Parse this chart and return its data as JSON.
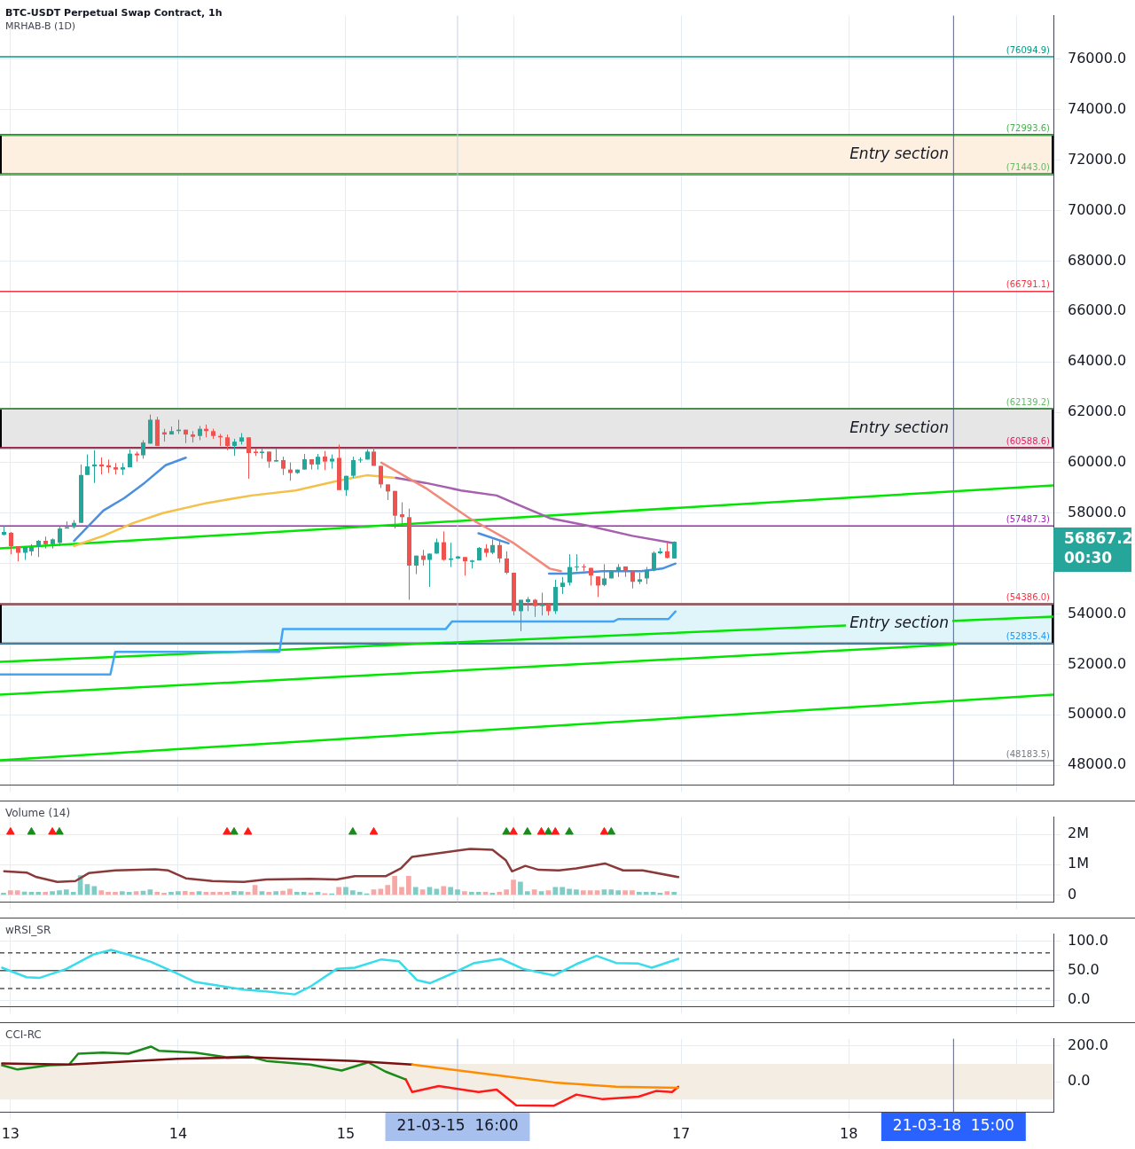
{
  "chart_data": [
    {
      "type": "candlestick",
      "title": "BTC-USDT Perpetual Swap Contract, 1h",
      "subtitle": "MRHAB-B (1D)",
      "x": [
        "--03-12T23:00",
        "--03-13T00:00",
        "--03-13T01:00",
        "--03-13T02:00",
        "--03-13T03:00",
        "--03-13T04:00",
        "--03-13T05:00",
        "--03-13T06:00",
        "--03-13T07:00",
        "--03-13T08:00",
        "--03-13T09:00",
        "--03-13T10:00",
        "--03-13T11:00",
        "--03-13T12:00",
        "--03-13T13:00",
        "--03-13T14:00",
        "--03-13T15:00",
        "--03-13T16:00",
        "--03-13T17:00",
        "--03-13T18:00",
        "--03-13T19:00",
        "--03-13T20:00",
        "--03-13T21:00",
        "--03-13T22:00",
        "--03-13T23:00",
        "--03-14T00:00",
        "--03-14T01:00",
        "--03-14T02:00",
        "--03-14T03:00",
        "--03-14T04:00",
        "--03-14T05:00",
        "--03-14T06:00",
        "--03-14T07:00",
        "--03-14T08:00",
        "--03-14T09:00",
        "--03-14T10:00",
        "--03-14T11:00",
        "--03-14T12:00",
        "--03-14T13:00",
        "--03-14T14:00",
        "--03-14T15:00",
        "--03-14T16:00",
        "--03-14T17:00",
        "--03-14T18:00",
        "--03-14T19:00",
        "--03-14T20:00",
        "--03-14T21:00",
        "--03-14T22:00",
        "--03-14T23:00",
        "--03-15T00:00",
        "--03-15T01:00",
        "--03-15T02:00",
        "--03-15T03:00",
        "--03-15T04:00",
        "--03-15T05:00",
        "--03-15T06:00",
        "--03-15T07:00",
        "--03-15T08:00",
        "--03-15T09:00",
        "--03-15T10:00",
        "--03-15T11:00",
        "--03-15T12:00",
        "--03-15T13:00",
        "--03-15T14:00",
        "--03-15T15:00",
        "--03-15T16:00",
        "--03-15T17:00",
        "--03-15T18:00",
        "--03-15T19:00",
        "--03-15T20:00",
        "--03-15T21:00",
        "--03-15T22:00",
        "--03-15T23:00",
        "--03-16T00:00",
        "--03-16T01:00",
        "--03-16T02:00",
        "--03-16T03:00",
        "--03-16T04:00",
        "--03-16T05:00",
        "--03-16T06:00",
        "--03-16T07:00",
        "--03-16T08:00",
        "--03-16T09:00",
        "--03-16T10:00",
        "--03-16T11:00",
        "--03-16T12:00",
        "--03-16T13:00",
        "--03-16T14:00",
        "--03-16T15:00",
        "--03-16T16:00",
        "--03-16T17:00",
        "--03-16T18:00",
        "--03-16T19:00",
        "--03-16T20:00",
        "--03-16T21:00",
        "--03-16T22:00",
        "--03-16T23:00"
      ],
      "ohlc": [
        [
          57140,
          57502,
          57107,
          57253
        ],
        [
          57220,
          57253,
          56372,
          56688
        ],
        [
          56688,
          56688,
          56090,
          56428
        ],
        [
          56428,
          56655,
          56146,
          56655
        ],
        [
          56485,
          56767,
          56310,
          56655
        ],
        [
          56655,
          56937,
          56259,
          56903
        ],
        [
          56903,
          57073,
          56598,
          56767
        ],
        [
          56767,
          57000,
          56598,
          56960
        ],
        [
          56824,
          57502,
          56700,
          57389
        ],
        [
          57389,
          57672,
          57389,
          57445
        ],
        [
          57445,
          57728,
          57389,
          57615
        ],
        [
          57615,
          59931,
          57615,
          59513
        ],
        [
          59513,
          60327,
          59513,
          59852
        ],
        [
          59852,
          60496,
          59197,
          59931
        ],
        [
          59931,
          60214,
          59536,
          59852
        ],
        [
          59898,
          60124,
          59592,
          59818
        ],
        [
          59818,
          59988,
          59536,
          59728
        ],
        [
          59728,
          59988,
          59513,
          59818
        ],
        [
          59818,
          60519,
          59818,
          60361
        ],
        [
          60361,
          60440,
          60045,
          60293
        ],
        [
          60293,
          60892,
          60158,
          60801
        ],
        [
          60756,
          61909,
          60756,
          61706
        ],
        [
          61706,
          61819,
          60666,
          60666
        ],
        [
          61208,
          61344,
          60835,
          61118
        ],
        [
          61118,
          61434,
          61118,
          61253
        ],
        [
          61253,
          61706,
          61140,
          61310
        ],
        [
          61310,
          61310,
          60779,
          61118
        ],
        [
          61118,
          61253,
          60801,
          61028
        ],
        [
          61061,
          61457,
          60892,
          61344
        ],
        [
          61344,
          61513,
          61005,
          61253
        ],
        [
          61253,
          61344,
          60948,
          61061
        ],
        [
          61061,
          61140,
          60666,
          61005
        ],
        [
          61005,
          61118,
          60496,
          60666
        ],
        [
          60666,
          60948,
          60271,
          60835
        ],
        [
          60835,
          61174,
          60722,
          61005
        ],
        [
          61005,
          61005,
          59366,
          60384
        ],
        [
          60440,
          60553,
          60271,
          60384
        ],
        [
          60384,
          60553,
          60158,
          60440
        ],
        [
          60440,
          60440,
          59796,
          60045
        ],
        [
          60045,
          60553,
          60045,
          60101
        ],
        [
          60101,
          60237,
          59513,
          59762
        ],
        [
          59728,
          60011,
          59287,
          59592
        ],
        [
          59592,
          59728,
          59559,
          59728
        ],
        [
          59728,
          60350,
          59728,
          60135
        ],
        [
          60135,
          60135,
          59732,
          59931
        ],
        [
          59931,
          60350,
          59728,
          60237
        ],
        [
          60248,
          60463,
          59705,
          60045
        ],
        [
          60045,
          60327,
          59762,
          60158
        ],
        [
          60191,
          60722,
          58914,
          58914
        ],
        [
          58914,
          59480,
          58688,
          59480
        ],
        [
          59480,
          60237,
          59400,
          60101
        ],
        [
          60101,
          60214,
          60000,
          60124
        ],
        [
          60124,
          60520,
          60124,
          60440
        ],
        [
          60440,
          60600,
          59875,
          59875
        ],
        [
          59875,
          59875,
          59000,
          59140
        ],
        [
          59140,
          59140,
          58519,
          58858
        ],
        [
          58881,
          58881,
          57389,
          57897
        ],
        [
          57954,
          58429,
          57502,
          57841
        ],
        [
          57841,
          58180,
          54564,
          55920
        ],
        [
          55920,
          56316,
          55581,
          56316
        ],
        [
          56316,
          56542,
          55920,
          56146
        ],
        [
          56146,
          56395,
          55073,
          56395
        ],
        [
          56395,
          56994,
          56395,
          56847
        ],
        [
          56847,
          57276,
          56112,
          56146
        ],
        [
          56146,
          56824,
          55864,
          56203
        ],
        [
          56203,
          56300,
          56180,
          56282
        ],
        [
          56259,
          56259,
          55525,
          56090
        ],
        [
          56067,
          56150,
          55807,
          56123
        ],
        [
          56123,
          56655,
          56123,
          56621
        ],
        [
          56598,
          56768,
          56259,
          56428
        ],
        [
          56428,
          56960,
          56372,
          56734
        ],
        [
          56734,
          56937,
          56033,
          56203
        ],
        [
          56203,
          56485,
          55581,
          55637
        ],
        [
          55637,
          55637,
          53943,
          54112
        ],
        [
          54112,
          54564,
          53321,
          54564
        ],
        [
          54474,
          54677,
          54112,
          54587
        ],
        [
          54564,
          54600,
          53886,
          54315
        ],
        [
          54315,
          54844,
          53943,
          54383
        ],
        [
          54383,
          54400,
          53943,
          54112
        ],
        [
          54112,
          55355,
          54000,
          55073
        ],
        [
          55073,
          55468,
          54790,
          55242
        ],
        [
          55242,
          56372,
          55129,
          55864
        ],
        [
          55864,
          56372,
          55694,
          55886
        ],
        [
          55886,
          55977,
          55694,
          55852
        ],
        [
          55830,
          55830,
          55129,
          55525
        ],
        [
          55491,
          55491,
          54677,
          55129
        ],
        [
          55152,
          55977,
          55106,
          55411
        ],
        [
          55411,
          55717,
          55411,
          55717
        ],
        [
          55717,
          55977,
          55468,
          55864
        ],
        [
          55886,
          55886,
          55468,
          55694
        ],
        [
          55694,
          55694,
          55016,
          55276
        ],
        [
          55276,
          55637,
          55186,
          55378
        ],
        [
          55411,
          55864,
          55186,
          55751
        ],
        [
          55728,
          56485,
          55694,
          56428
        ],
        [
          56406,
          56621,
          56372,
          56485
        ],
        [
          56485,
          56824,
          56203,
          56225
        ],
        [
          56203,
          56880,
          56203,
          56867.2
        ]
      ],
      "colors": [
        "#26a69a",
        "#ef5350",
        "#ef5350",
        "#26a69a",
        "#26a69a",
        "#26a69a",
        "#ef5350",
        "#26a69a",
        "#26a69a",
        "#26a69a",
        "#26a69a",
        "#26a69a",
        "#26a69a",
        "#26a69a",
        "#ef5350",
        "#ef5350",
        "#ef5350",
        "#26a69a",
        "#26a69a",
        "#ef5350",
        "#26a69a",
        "#26a69a",
        "#ef5350",
        "#ef5350",
        "#26a69a",
        "#26a69a",
        "#ef5350",
        "#ef5350",
        "#26a69a",
        "#ef5350",
        "#ef5350",
        "#ef5350",
        "#ef5350",
        "#26a69a",
        "#26a69a",
        "#ef5350",
        "#ef5350",
        "#26a69a",
        "#ef5350",
        "#26a69a",
        "#ef5350",
        "#ef5350",
        "#26a69a",
        "#26a69a",
        "#ef5350",
        "#26a69a",
        "#ef5350",
        "#26a69a",
        "#ef5350",
        "#26a69a",
        "#26a69a",
        "#26a69a",
        "#26a69a",
        "#ef5350",
        "#ef5350",
        "#ef5350",
        "#ef5350",
        "#ef5350",
        "#ef5350",
        "#26a69a",
        "#ef5350",
        "#26a69a",
        "#26a69a",
        "#ef5350",
        "#26a69a",
        "#26a69a",
        "#ef5350",
        "#26a69a",
        "#26a69a",
        "#ef5350",
        "#26a69a",
        "#ef5350",
        "#ef5350",
        "#ef5350",
        "#26a69a",
        "#26a69a",
        "#ef5350",
        "#26a69a",
        "#ef5350",
        "#26a69a",
        "#26a69a",
        "#26a69a",
        "#26a69a",
        "#ef5350",
        "#ef5350",
        "#ef5350",
        "#26a69a",
        "#26a69a",
        "#26a69a",
        "#ef5350",
        "#ef5350",
        "#26a69a",
        "#26a69a",
        "#26a69a",
        "#26a69a",
        "#ef5350",
        "#26a69a"
      ],
      "series": [
        {
          "type": "line",
          "color": "#00e600",
          "x": [
            "--03-12T22:30",
            "--03-19T05:18"
          ],
          "values": [
            56600,
            59100
          ]
        },
        {
          "type": "line",
          "color": "#00e600",
          "x": [
            "--03-12T22:30",
            "--03-19T05:18"
          ],
          "values": [
            52100,
            53900
          ]
        },
        {
          "type": "line",
          "color": "#00e600",
          "x": [
            "--03-12T22:30",
            "--03-18T15:24"
          ],
          "values": [
            50800,
            52800
          ]
        },
        {
          "type": "line",
          "color": "#00e600",
          "x": [
            "--03-12T22:30",
            "--03-19T05:18"
          ],
          "values": [
            48200,
            50800
          ]
        },
        {
          "type": "line",
          "color": "#42a5f5",
          "x": [
            "--03-12T22:30",
            "--03-13T14:18",
            "--03-13T15:00",
            "--03-14T14:30",
            "--03-14T15:00",
            "--03-15T14:18",
            "--03-15T15:12",
            "--03-16T14:18",
            "--03-16T15:00",
            "--03-16T22:12",
            "--03-16T23:12"
          ],
          "values": [
            51600,
            51600,
            52500,
            52500,
            53400,
            53400,
            53700,
            53700,
            53800,
            53800,
            54100
          ]
        },
        {
          "type": "line",
          "color": "#f5c04a",
          "x": [
            "--03-13T09:06",
            "--03-13T13:18",
            "--03-13T17:30",
            "--03-13T21:48",
            "--03-14T04:06",
            "--03-14T10:30",
            "--03-14T16:48",
            "--03-14T23:12",
            "--03-15T03:00",
            "--03-15T07:12"
          ],
          "values": [
            56700,
            57100,
            57600,
            58000,
            58400,
            58700,
            58900,
            59300,
            59500,
            59400
          ]
        },
        {
          "type": "line",
          "color": "#a660ad",
          "x": [
            "--03-15T07:12",
            "--03-15T11:24",
            "--03-15T16:30",
            "--03-15T21:36",
            "--03-16T00:06",
            "--03-16T05:12",
            "--03-16T10:42",
            "--03-16T17:00",
            "--03-16T23:12"
          ],
          "values": [
            59400,
            59200,
            58900,
            58700,
            58400,
            57800,
            57500,
            57100,
            56800
          ]
        },
        {
          "type": "line",
          "color": "#f08a7a",
          "x": [
            "--03-15T05:06",
            "--03-15T11:24",
            "--03-15T17:42",
            "--03-16T00:06",
            "--03-16T05:12",
            "--03-16T06:48"
          ],
          "values": [
            60000,
            59000,
            57800,
            56800,
            55800,
            55700
          ]
        },
        {
          "type": "line",
          "color": "#4a8fe0",
          "x": [
            "--03-13T09:06",
            "--03-13T13:18",
            "--03-13T16:18",
            "--03-13T19:12",
            "--03-13T22:12",
            "--03-14T01:06",
            "--03-14T22:00",
            "--03-15T19:00",
            "--03-15T23:18",
            "--03-16T02:00",
            "--03-16T05:06",
            "--03-16T07:42",
            "--03-16T12:48",
            "--03-16T18:18",
            "--03-16T21:18",
            "--03-16T23:12"
          ],
          "values": [
            56900,
            58100,
            58600,
            59200,
            59900,
            60200,
            null,
            57200,
            56800,
            null,
            55600,
            55600,
            55700,
            55700,
            55800,
            56000
          ]
        }
      ],
      "xlim": [
        "--03-12T22:30",
        "--03-19T05:18"
      ],
      "ylim": [
        47220,
        77730
      ],
      "xticks": [
        {
          "value": "--03-13T00:00",
          "label": "13"
        },
        {
          "value": "--03-14T00:00",
          "label": "14"
        },
        {
          "value": "--03-15T00:00",
          "label": "15"
        },
        {
          "value": "--03-16T00:00",
          "label": null
        },
        {
          "value": "--03-17T00:00",
          "label": "17"
        },
        {
          "value": "--03-18T00:00",
          "label": "18"
        },
        {
          "value": "--03-19T00:00",
          "label": null
        }
      ],
      "yticks": [
        {
          "value": 48000,
          "label": "48000.0"
        },
        {
          "value": 50000,
          "label": "50000.0"
        },
        {
          "value": 52000,
          "label": "52000.0"
        },
        {
          "value": 54000,
          "label": "54000.0"
        },
        {
          "value": 56000,
          "label": null
        },
        {
          "value": 58000,
          "label": "58000.0"
        },
        {
          "value": 60000,
          "label": "60000.0"
        },
        {
          "value": 62000,
          "label": "62000.0"
        },
        {
          "value": 64000,
          "label": "64000.0"
        },
        {
          "value": 66000,
          "label": "66000.0"
        },
        {
          "value": 68000,
          "label": "68000.0"
        },
        {
          "value": 70000,
          "label": "70000.0"
        },
        {
          "value": 72000,
          "label": "72000.0"
        },
        {
          "value": 74000,
          "label": "74000.0"
        },
        {
          "value": 76000,
          "label": "76000.0"
        }
      ],
      "tick_labels": "y",
      "grid": true,
      "bands": [
        {
          "axis": "y",
          "from": 71443.0,
          "to": 72993.6,
          "label": "Entry section",
          "color": "#fdf0e0"
        },
        {
          "axis": "y",
          "from": 60588.6,
          "to": 62139.2,
          "label": "Entry section",
          "color": "#e6e6e6"
        },
        {
          "axis": "y",
          "from": 52835.4,
          "to": 54386.0,
          "label": "Entry section",
          "color": "#e0f5fa"
        }
      ],
      "ref_lines": [
        {
          "axis": "y",
          "value": 76094.9,
          "label": "(76094.9)",
          "color": "#089981"
        },
        {
          "axis": "y",
          "value": 72993.6,
          "label": "(72993.6)",
          "color": "#4caf50"
        },
        {
          "axis": "y",
          "value": 71443.0,
          "label": "(71443.0)",
          "color": "#66bb6a"
        },
        {
          "axis": "y",
          "value": 66791.1,
          "label": "(66791.1)",
          "color": "#f23645"
        },
        {
          "axis": "y",
          "value": 62139.2,
          "label": "(62139.2)",
          "color": "#66bb6a"
        },
        {
          "axis": "y",
          "value": 60588.6,
          "label": "(60588.6)",
          "color": "#e91e63"
        },
        {
          "axis": "y",
          "value": 57487.3,
          "label": "(57487.3)",
          "color": "#9c27b0"
        },
        {
          "axis": "y",
          "value": 54386.0,
          "label": "(54386.0)",
          "color": "#f23645"
        },
        {
          "axis": "y",
          "value": 52835.4,
          "label": "(52835.4)",
          "color": "#2196f3"
        },
        {
          "axis": "y",
          "value": 48183.5,
          "label": "(48183.5)",
          "color": "#787b86"
        },
        {
          "axis": "x",
          "value": "--03-15T16:00",
          "color": "#c5cfe6"
        },
        {
          "axis": "x",
          "value": "--03-18T15:00",
          "color": "#2962ff"
        }
      ],
      "annotations": [
        "56867.2",
        "00:30"
      ]
    },
    {
      "type": "bar",
      "title": "Volume (14)",
      "series": [
        {
          "x": [
            "--03-12T23:00",
            "--03-13T00:00",
            "--03-13T01:00",
            "--03-13T02:00",
            "--03-13T03:00",
            "--03-13T04:00",
            "--03-13T05:00",
            "--03-13T06:00",
            "--03-13T07:00",
            "--03-13T08:00",
            "--03-13T09:00",
            "--03-13T10:00",
            "--03-13T11:00",
            "--03-13T12:00",
            "--03-13T13:00",
            "--03-13T14:00",
            "--03-13T15:00",
            "--03-13T16:00",
            "--03-13T17:00",
            "--03-13T18:00",
            "--03-13T19:00",
            "--03-13T20:00",
            "--03-13T21:00",
            "--03-13T22:00",
            "--03-13T23:00",
            "--03-14T00:00",
            "--03-14T01:00",
            "--03-14T02:00",
            "--03-14T03:00",
            "--03-14T04:00",
            "--03-14T05:00",
            "--03-14T06:00",
            "--03-14T07:00",
            "--03-14T08:00",
            "--03-14T09:00",
            "--03-14T10:00",
            "--03-14T11:00",
            "--03-14T12:00",
            "--03-14T13:00",
            "--03-14T14:00",
            "--03-14T15:00",
            "--03-14T16:00",
            "--03-14T17:00",
            "--03-14T18:00",
            "--03-14T19:00",
            "--03-14T20:00",
            "--03-14T21:00",
            "--03-14T22:00",
            "--03-14T23:00",
            "--03-15T00:00",
            "--03-15T01:00",
            "--03-15T02:00",
            "--03-15T03:00",
            "--03-15T04:00",
            "--03-15T05:00",
            "--03-15T06:00",
            "--03-15T07:00",
            "--03-15T08:00",
            "--03-15T09:00",
            "--03-15T10:00",
            "--03-15T11:00",
            "--03-15T12:00",
            "--03-15T13:00",
            "--03-15T14:00",
            "--03-15T15:00",
            "--03-15T16:00",
            "--03-15T17:00",
            "--03-15T18:00",
            "--03-15T19:00",
            "--03-15T20:00",
            "--03-15T21:00",
            "--03-15T22:00",
            "--03-15T23:00",
            "--03-16T00:00",
            "--03-16T01:00",
            "--03-16T02:00",
            "--03-16T03:00",
            "--03-16T04:00",
            "--03-16T05:00",
            "--03-16T06:00",
            "--03-16T07:00",
            "--03-16T08:00",
            "--03-16T09:00",
            "--03-16T10:00",
            "--03-16T11:00",
            "--03-16T12:00",
            "--03-16T13:00",
            "--03-16T14:00",
            "--03-16T15:00",
            "--03-16T16:00",
            "--03-16T17:00",
            "--03-16T18:00",
            "--03-16T19:00",
            "--03-16T20:00",
            "--03-16T21:00",
            "--03-16T22:00",
            "--03-16T23:00"
          ],
          "values": [
            60000,
            140000,
            140000,
            100000,
            90000,
            90000,
            90000,
            110000,
            140000,
            170000,
            90000,
            640000,
            350000,
            280000,
            140000,
            90000,
            90000,
            110000,
            90000,
            110000,
            130000,
            170000,
            90000,
            60000,
            90000,
            110000,
            120000,
            90000,
            110000,
            90000,
            90000,
            90000,
            90000,
            120000,
            110000,
            90000,
            320000,
            110000,
            90000,
            110000,
            130000,
            190000,
            90000,
            90000,
            70000,
            90000,
            50000,
            40000,
            250000,
            250000,
            140000,
            90000,
            40000,
            170000,
            190000,
            320000,
            620000,
            250000,
            620000,
            250000,
            170000,
            250000,
            190000,
            280000,
            250000,
            170000,
            110000,
            90000,
            90000,
            90000,
            60000,
            90000,
            170000,
            490000,
            430000,
            110000,
            170000,
            110000,
            140000,
            250000,
            250000,
            190000,
            170000,
            140000,
            140000,
            140000,
            170000,
            170000,
            140000,
            140000,
            140000,
            90000,
            90000,
            90000,
            60000,
            110000,
            90000
          ],
          "colors": [
            "#80cbc4",
            "#f7a7a5",
            "#f7a7a5",
            "#80cbc4",
            "#80cbc4",
            "#80cbc4",
            "#f7a7a5",
            "#80cbc4",
            "#80cbc4",
            "#80cbc4",
            "#80cbc4",
            "#80cbc4",
            "#80cbc4",
            "#80cbc4",
            "#f7a7a5",
            "#f7a7a5",
            "#f7a7a5",
            "#80cbc4",
            "#80cbc4",
            "#f7a7a5",
            "#80cbc4",
            "#80cbc4",
            "#f7a7a5",
            "#f7a7a5",
            "#80cbc4",
            "#80cbc4",
            "#f7a7a5",
            "#f7a7a5",
            "#80cbc4",
            "#f7a7a5",
            "#f7a7a5",
            "#f7a7a5",
            "#f7a7a5",
            "#80cbc4",
            "#80cbc4",
            "#f7a7a5",
            "#f7a7a5",
            "#80cbc4",
            "#f7a7a5",
            "#80cbc4",
            "#f7a7a5",
            "#f7a7a5",
            "#80cbc4",
            "#80cbc4",
            "#f7a7a5",
            "#80cbc4",
            "#f7a7a5",
            "#80cbc4",
            "#f7a7a5",
            "#80cbc4",
            "#80cbc4",
            "#80cbc4",
            "#80cbc4",
            "#f7a7a5",
            "#f7a7a5",
            "#f7a7a5",
            "#f7a7a5",
            "#f7a7a5",
            "#f7a7a5",
            "#80cbc4",
            "#f7a7a5",
            "#80cbc4",
            "#80cbc4",
            "#f7a7a5",
            "#80cbc4",
            "#80cbc4",
            "#f7a7a5",
            "#80cbc4",
            "#80cbc4",
            "#f7a7a5",
            "#80cbc4",
            "#f7a7a5",
            "#f7a7a5",
            "#f7a7a5",
            "#80cbc4",
            "#80cbc4",
            "#f7a7a5",
            "#80cbc4",
            "#f7a7a5",
            "#80cbc4",
            "#80cbc4",
            "#80cbc4",
            "#80cbc4",
            "#f7a7a5",
            "#f7a7a5",
            "#f7a7a5",
            "#80cbc4",
            "#80cbc4",
            "#80cbc4",
            "#f7a7a5",
            "#f7a7a5",
            "#80cbc4",
            "#80cbc4",
            "#80cbc4",
            "#80cbc4",
            "#f7a7a5",
            "#80cbc4"
          ]
        },
        {
          "type": "line",
          "color": "#8b3a3a",
          "x": [
            "--03-12T23:06",
            "--03-13T02:18",
            "--03-13T03:36",
            "--03-13T06:42",
            "--03-13T09:18",
            "--03-13T11:12",
            "--03-13T15:00",
            "--03-13T20:42",
            "--03-13T22:36",
            "--03-14T01:06",
            "--03-14T04:54",
            "--03-14T09:24",
            "--03-14T12:36",
            "--03-14T18:54",
            "--03-14T22:42",
            "--03-15T01:18",
            "--03-15T05:42",
            "--03-15T07:54",
            "--03-15T09:30",
            "--03-15T12:42",
            "--03-15T17:48",
            "--03-15T21:00",
            "--03-15T22:54",
            "--03-15T23:48",
            "--03-16T01:42",
            "--03-16T03:36",
            "--03-16T06:30",
            "--03-16T09:00",
            "--03-16T13:06",
            "--03-16T15:42",
            "--03-16T18:30",
            "--03-16T23:36"
          ],
          "values": [
            780000,
            740000,
            600000,
            430000,
            460000,
            720000,
            810000,
            850000,
            810000,
            550000,
            460000,
            430000,
            510000,
            530000,
            510000,
            620000,
            620000,
            880000,
            1260000,
            1360000,
            1520000,
            1490000,
            1150000,
            780000,
            960000,
            830000,
            810000,
            880000,
            1040000,
            810000,
            810000,
            590000
          ]
        },
        {
          "type": "scatter",
          "marker": "triangle",
          "color": "#1b8a1b",
          "x": [
            "--03-13T03:00",
            "--03-13T07:00",
            "--03-14T08:00",
            "--03-15T01:00",
            "--03-15T23:00",
            "--03-16T02:00",
            "--03-16T05:00",
            "--03-16T08:00",
            "--03-16T14:00"
          ],
          "values": [
            2080000,
            2080000,
            2080000,
            2080000,
            2080000,
            2080000,
            2080000,
            2080000,
            2080000
          ]
        },
        {
          "type": "scatter",
          "marker": "triangle",
          "color": "#ff1a1a",
          "x": [
            "--03-13T00:00",
            "--03-13T06:00",
            "--03-14T07:00",
            "--03-14T10:00",
            "--03-15T04:00",
            "--03-16T00:00",
            "--03-16T04:00",
            "--03-16T06:00",
            "--03-16T13:00"
          ],
          "values": [
            2080000,
            2080000,
            2080000,
            2080000,
            2080000,
            2080000,
            2080000,
            2080000,
            2080000
          ]
        }
      ],
      "xlim": [
        "--03-12T22:30",
        "--03-19T05:18"
      ],
      "ylim": [
        -234000,
        2574000
      ],
      "xticks": [
        {
          "value": "--03-13T00:00",
          "label": "13"
        },
        {
          "value": "--03-14T00:00",
          "label": "14"
        },
        {
          "value": "--03-15T00:00",
          "label": "15"
        },
        {
          "value": "--03-16T00:00",
          "label": null
        },
        {
          "value": "--03-17T00:00",
          "label": "17"
        },
        {
          "value": "--03-18T00:00",
          "label": "18"
        },
        {
          "value": "--03-19T00:00",
          "label": null
        }
      ],
      "yticks": [
        0,
        {
          "value": 1000000,
          "label": "1M"
        },
        {
          "value": 2000000,
          "label": "2M"
        }
      ],
      "tick_labels": "y",
      "grid": true,
      "ref_lines": [
        {
          "axis": "x",
          "value": "--03-15T16:00",
          "color": "#c5cfe6"
        }
      ]
    },
    {
      "type": "line",
      "title": "wRSI_SR",
      "series": [
        {
          "color": "#38dceb",
          "x": [
            "--03-12T22:48",
            "--03-13T02:18",
            "--03-13T04:12",
            "--03-13T08:00",
            "--03-13T11:48",
            "--03-13T14:24",
            "--03-13T16:54",
            "--03-13T20:06",
            "--03-13T23:54",
            "--03-14T02:24",
            "--03-14T05:36",
            "--03-14T09:24",
            "--03-14T12:36",
            "--03-14T16:42",
            "--03-14T18:54",
            "--03-14T22:42",
            "--03-15T01:18",
            "--03-15T05:06",
            "--03-15T07:36",
            "--03-15T10:12",
            "--03-15T12:06",
            "--03-15T15:12",
            "--03-15T18:24",
            "--03-15T22:12",
            "--03-16T01:24",
            "--03-16T05:48",
            "--03-16T09:00",
            "--03-16T11:54",
            "--03-16T14:42",
            "--03-16T17:54",
            "--03-16T19:48",
            "--03-16T23:36"
          ],
          "values": [
            55,
            39,
            38,
            53,
            77,
            85,
            77,
            65,
            45,
            31,
            25,
            18,
            15,
            10,
            23,
            53,
            55,
            69,
            66,
            34,
            29,
            45,
            63,
            70,
            53,
            42,
            61,
            75,
            63,
            62,
            55,
            70
          ]
        }
      ],
      "xlim": [
        "--03-12T22:30",
        "--03-19T05:18"
      ],
      "ylim": [
        -10.6,
        111.7
      ],
      "xticks": [
        {
          "value": "--03-13T00:00",
          "label": "13"
        },
        {
          "value": "--03-14T00:00",
          "label": "14"
        },
        {
          "value": "--03-15T00:00",
          "label": "15"
        },
        {
          "value": "--03-16T00:00",
          "label": null
        },
        {
          "value": "--03-17T00:00",
          "label": "17"
        },
        {
          "value": "--03-18T00:00",
          "label": "18"
        },
        {
          "value": "--03-19T00:00",
          "label": null
        }
      ],
      "yticks": [
        {
          "value": 0,
          "label": "0.0"
        },
        {
          "value": 50,
          "label": "50.0"
        },
        {
          "value": 100,
          "label": "100.0"
        }
      ],
      "tick_labels": "y",
      "grid": true,
      "ref_lines": [
        {
          "axis": "y",
          "value": 80,
          "color": "#555555",
          "line_style": "dashed"
        },
        {
          "axis": "y",
          "value": 50,
          "color": "#555555"
        },
        {
          "axis": "y",
          "value": 20,
          "color": "#555555",
          "line_style": "dashed"
        },
        {
          "axis": "x",
          "value": "--03-15T16:00",
          "color": "#c5cfe6"
        }
      ]
    },
    {
      "type": "line",
      "title": "CCI-RC",
      "series": [
        {
          "color": "#1a8a1a",
          "x": [
            "--03-12T22:48",
            "--03-13T01:00",
            "--03-13T05:36",
            "--03-13T08:24",
            "--03-13T09:42",
            "--03-13T13:12",
            "--03-13T16:54",
            "--03-13T20:06",
            "--03-13T21:18",
            "--03-14T02:24",
            "--03-14T06:54",
            "--03-14T10:00",
            "--03-14T12:36",
            "--03-14T18:54",
            "--03-14T23:24",
            "--03-15T03:12",
            "--03-15T05:42",
            "--03-15T08:36"
          ],
          "values": [
            92,
            68,
            92,
            96,
            156,
            162,
            156,
            196,
            172,
            162,
            136,
            142,
            116,
            96,
            62,
            108,
            56,
            12
          ]
        },
        {
          "color": "#ff1a1a",
          "x": [
            "--03-15T08:36",
            "--03-15T09:30",
            "--03-15T13:18",
            "--03-15T19:00",
            "--03-15T21:36",
            "--03-16T00:24",
            "--03-16T05:48",
            "--03-16T09:00",
            "--03-16T12:48",
            "--03-16T17:54",
            "--03-16T20:24",
            "--03-16T22:42",
            "--03-16T23:36"
          ],
          "values": [
            12,
            -58,
            -24,
            -58,
            -44,
            -132,
            -134,
            -72,
            -98,
            -84,
            -52,
            -58,
            -28
          ]
        },
        {
          "color": "#7a1010",
          "x": [
            "--03-12T22:48",
            "--03-13T08:24",
            "--03-13T23:54",
            "--03-14T10:00",
            "--03-15T01:18",
            "--03-15T09:30"
          ],
          "values": [
            102,
            96,
            128,
            136,
            116,
            96
          ]
        },
        {
          "color": "#ff8c00",
          "x": [
            "--03-15T09:30",
            "--03-15T20:18",
            "--03-16T05:48",
            "--03-16T14:42",
            "--03-16T23:36"
          ],
          "values": [
            96,
            42,
            -4,
            -28,
            -34
          ]
        }
      ],
      "xlim": [
        "--03-12T22:30",
        "--03-19T05:18"
      ],
      "ylim": [
        -168,
        240
      ],
      "xticks": [
        {
          "value": "--03-13T00:00",
          "label": "13"
        },
        {
          "value": "--03-14T00:00",
          "label": "14"
        },
        {
          "value": "--03-15T00:00",
          "label": "15"
        },
        {
          "value": "--03-16T00:00",
          "label": null
        },
        {
          "value": "--03-17T00:00",
          "label": "17"
        },
        {
          "value": "--03-18T00:00",
          "label": "18"
        },
        {
          "value": "--03-19T00:00",
          "label": null
        }
      ],
      "yticks": [
        {
          "value": 0,
          "label": "0.0"
        },
        {
          "value": 200,
          "label": "200.0"
        }
      ],
      "grid": true,
      "bands": [
        {
          "axis": "y",
          "from": -100,
          "to": 100,
          "color": "#f3ede3"
        }
      ],
      "ref_lines": [
        {
          "axis": "x",
          "value": "--03-15T16:00",
          "label": "21-03-15  16:00",
          "color": "#a8c0ee"
        },
        {
          "axis": "x",
          "value": "--03-18T15:00",
          "label": "21-03-18  15:00",
          "color": "#2962ff"
        }
      ]
    }
  ]
}
